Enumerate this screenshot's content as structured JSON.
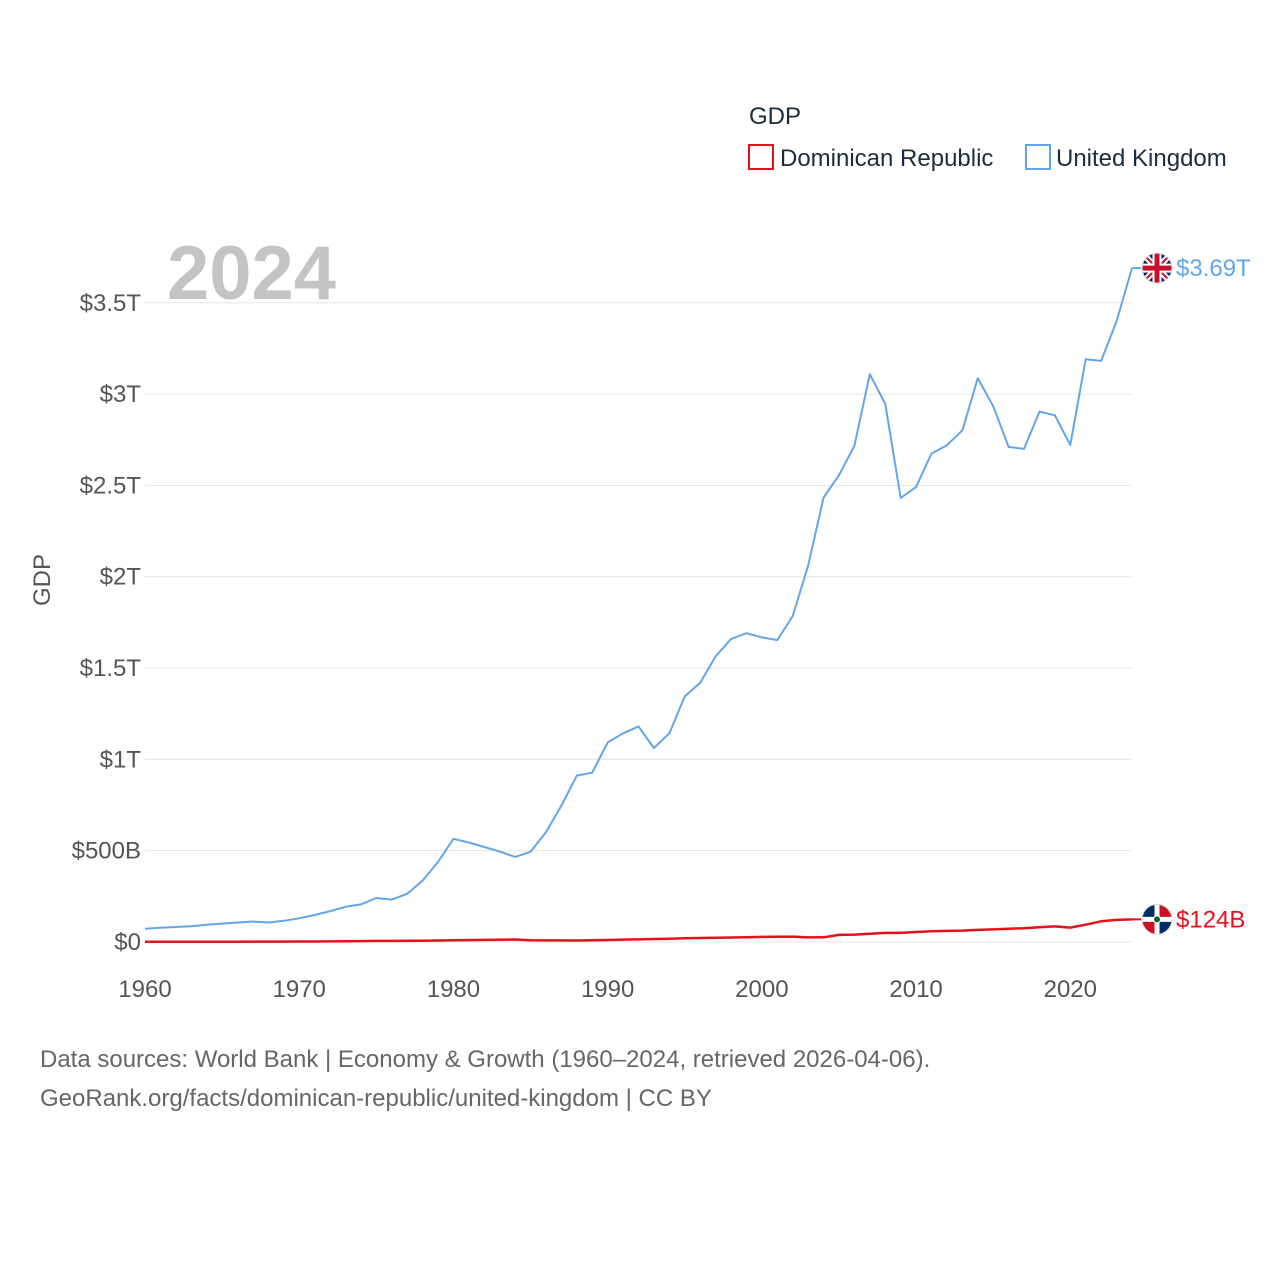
{
  "chart_data": {
    "type": "line",
    "legend_title": "GDP",
    "ylabel": "GDP",
    "year_label": "2024",
    "xlim": [
      1960,
      2024
    ],
    "ylim": [
      0,
      3800000000000
    ],
    "x_ticks": [
      1960,
      1970,
      1980,
      1990,
      2000,
      2010,
      2020
    ],
    "y_ticks": [
      {
        "value": 0,
        "label": "$0"
      },
      {
        "value": 500000000000,
        "label": "$500B"
      },
      {
        "value": 1000000000000,
        "label": "$1T"
      },
      {
        "value": 1500000000000,
        "label": "$1.5T"
      },
      {
        "value": 2000000000000,
        "label": "$2T"
      },
      {
        "value": 2500000000000,
        "label": "$2.5T"
      },
      {
        "value": 3000000000000,
        "label": "$3T"
      },
      {
        "value": 3500000000000,
        "label": "$3.5T"
      }
    ],
    "x": [
      1960,
      1961,
      1962,
      1963,
      1964,
      1965,
      1966,
      1967,
      1968,
      1969,
      1970,
      1971,
      1972,
      1973,
      1974,
      1975,
      1976,
      1977,
      1978,
      1979,
      1980,
      1981,
      1982,
      1983,
      1984,
      1985,
      1986,
      1987,
      1988,
      1989,
      1990,
      1991,
      1992,
      1993,
      1994,
      1995,
      1996,
      1997,
      1998,
      1999,
      2000,
      2001,
      2002,
      2003,
      2004,
      2005,
      2006,
      2007,
      2008,
      2009,
      2010,
      2011,
      2012,
      2013,
      2014,
      2015,
      2016,
      2017,
      2018,
      2019,
      2020,
      2021,
      2022,
      2023,
      2024
    ],
    "series": [
      {
        "name": "Dominican Republic",
        "color": "#e8111a",
        "flag": "dominican-republic-flag",
        "end_label": "$124B",
        "values": [
          1.3,
          1.4,
          1.6,
          1.8,
          1.9,
          1.8,
          1.9,
          2.0,
          2.0,
          2.3,
          2.6,
          3.0,
          3.4,
          4.1,
          5.1,
          5.8,
          6.2,
          6.9,
          7.2,
          8.2,
          9.3,
          10.5,
          11.4,
          12.1,
          13.5,
          9.1,
          8.6,
          8.9,
          8.4,
          9.4,
          11.0,
          13.0,
          14.5,
          16.3,
          18.0,
          20.0,
          21.8,
          23.6,
          24.9,
          25.9,
          28.1,
          29.1,
          29.8,
          25.0,
          26.0,
          38.8,
          40.7,
          45.4,
          50.1,
          50.1,
          54.7,
          58.5,
          61.0,
          62.6,
          66.1,
          69.0,
          73.0,
          75.7,
          81.0,
          85.5,
          78.8,
          94.5,
          113.6,
          121.0,
          124.0
        ]
      },
      {
        "name": "United Kingdom",
        "color": "#62a6e8",
        "flag": "united-kingdom-flag",
        "end_label": "$3.69T",
        "values": [
          73,
          78,
          82,
          86,
          94,
          101,
          107,
          112,
          107,
          116,
          130,
          148,
          169,
          193,
          206,
          241,
          232,
          264,
          336,
          438,
          565,
          545,
          520,
          495,
          466,
          494,
          602,
          747,
          911,
          927,
          1093,
          1143,
          1180,
          1062,
          1142,
          1345,
          1420,
          1564,
          1659,
          1691,
          1668,
          1653,
          1785,
          2060,
          2434,
          2556,
          2717,
          3109,
          2946,
          2431,
          2492,
          2675,
          2720,
          2802,
          3087,
          2934,
          2711,
          2700,
          2904,
          2884,
          2721,
          3191,
          3182,
          3400,
          3690
        ]
      }
    ]
  },
  "footer": {
    "line1": "Data sources: World Bank | Economy & Growth (1960–2024, retrieved 2026-04-06).",
    "line2": "GeoRank.org/facts/dominican-republic/united-kingdom | CC BY"
  }
}
